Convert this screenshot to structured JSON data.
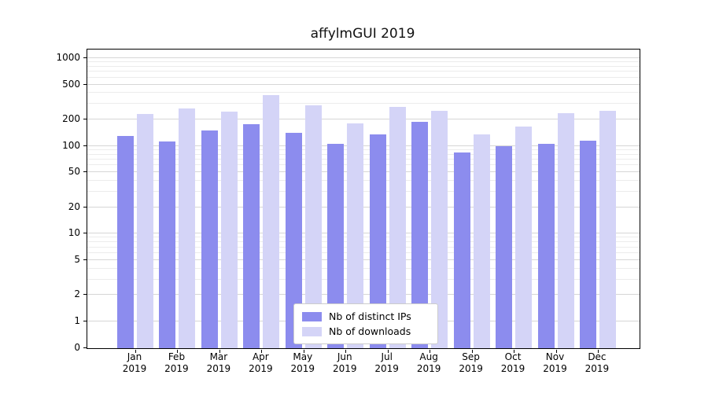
{
  "title": "affylmGUI 2019",
  "colors": {
    "ips_bar": "#8c8cee",
    "downloads_bar": "#d4d4f7",
    "grid_major": "#d6d6d6",
    "grid_minor": "#ececec",
    "axis": "#000000",
    "legend_border": "#cccccc"
  },
  "chart_data": {
    "type": "bar",
    "title": "affylmGUI 2019",
    "y_scale": "log",
    "ylim": [
      0,
      1000
    ],
    "grid": true,
    "legend_position": "bottom-center",
    "y_ticks": [
      0,
      1,
      2,
      5,
      10,
      20,
      50,
      100,
      200,
      500,
      1000
    ],
    "categories": [
      "Jan 2019",
      "Feb 2019",
      "Mar 2019",
      "Apr 2019",
      "May 2019",
      "Jun 2019",
      "Jul 2019",
      "Aug 2019",
      "Sep 2019",
      "Oct 2019",
      "Nov 2019",
      "Dec 2019"
    ],
    "series": [
      {
        "name": "Nb of distinct IPs",
        "key": "ips",
        "color": "#8c8cee",
        "values": [
          130,
          113,
          150,
          176,
          140,
          106,
          134,
          188,
          85,
          100,
          106,
          114
        ]
      },
      {
        "name": "Nb of downloads",
        "key": "downloads",
        "color": "#d4d4f7",
        "values": [
          230,
          270,
          248,
          380,
          290,
          180,
          278,
          250,
          135,
          165,
          235,
          250
        ]
      }
    ]
  }
}
